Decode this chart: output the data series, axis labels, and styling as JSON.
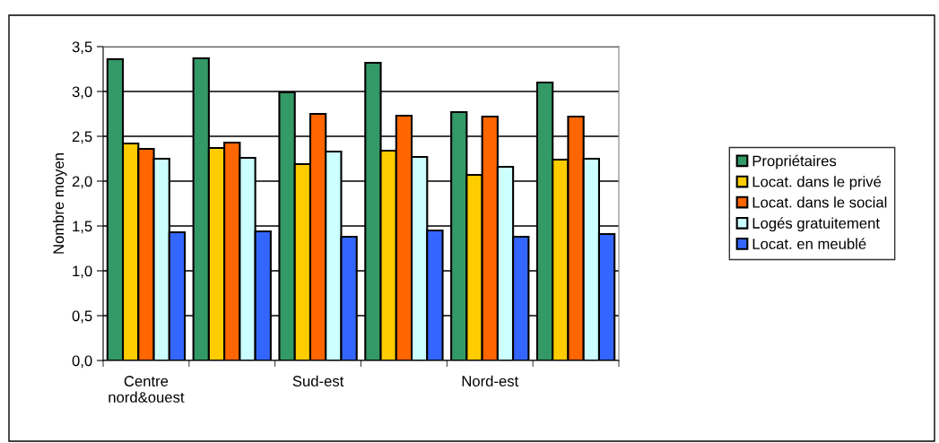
{
  "chart_data": {
    "type": "bar",
    "ylabel": "Nombre moyen",
    "categories": [
      "Centre\nnord&ouest",
      null,
      "Sud-est",
      null,
      "Nord-est",
      null
    ],
    "series": [
      {
        "name": "Propriétaires",
        "color": "#339966",
        "values": [
          3.36,
          3.37,
          2.99,
          3.32,
          2.77,
          3.1
        ]
      },
      {
        "name": "Locat. dans le privé",
        "color": "#ffcc00",
        "values": [
          2.42,
          2.37,
          2.19,
          2.34,
          2.07,
          2.24
        ]
      },
      {
        "name": "Locat. dans le social",
        "color": "#ff6600",
        "values": [
          2.36,
          2.43,
          2.75,
          2.73,
          2.72,
          2.72
        ]
      },
      {
        "name": "Logés gratuitement",
        "color": "#ccffff",
        "values": [
          2.25,
          2.26,
          2.33,
          2.27,
          2.16,
          2.25
        ]
      },
      {
        "name": "Locat. en meublé",
        "color": "#3366ff",
        "values": [
          1.43,
          1.44,
          1.38,
          1.45,
          1.38,
          1.41
        ]
      }
    ],
    "ylim": [
      0,
      3.5
    ],
    "yticks": [
      {
        "value": 0,
        "label": "0,0"
      },
      {
        "value": 0.5,
        "label": "0,5"
      },
      {
        "value": 1,
        "label": "1,0"
      },
      {
        "value": 1.5,
        "label": "1,5"
      },
      {
        "value": 2,
        "label": "2,0"
      },
      {
        "value": 2.5,
        "label": "2,5"
      },
      {
        "value": 3,
        "label": "3,0"
      },
      {
        "value": 3.5,
        "label": "3,5"
      }
    ],
    "grid": "y",
    "legend": "right"
  }
}
